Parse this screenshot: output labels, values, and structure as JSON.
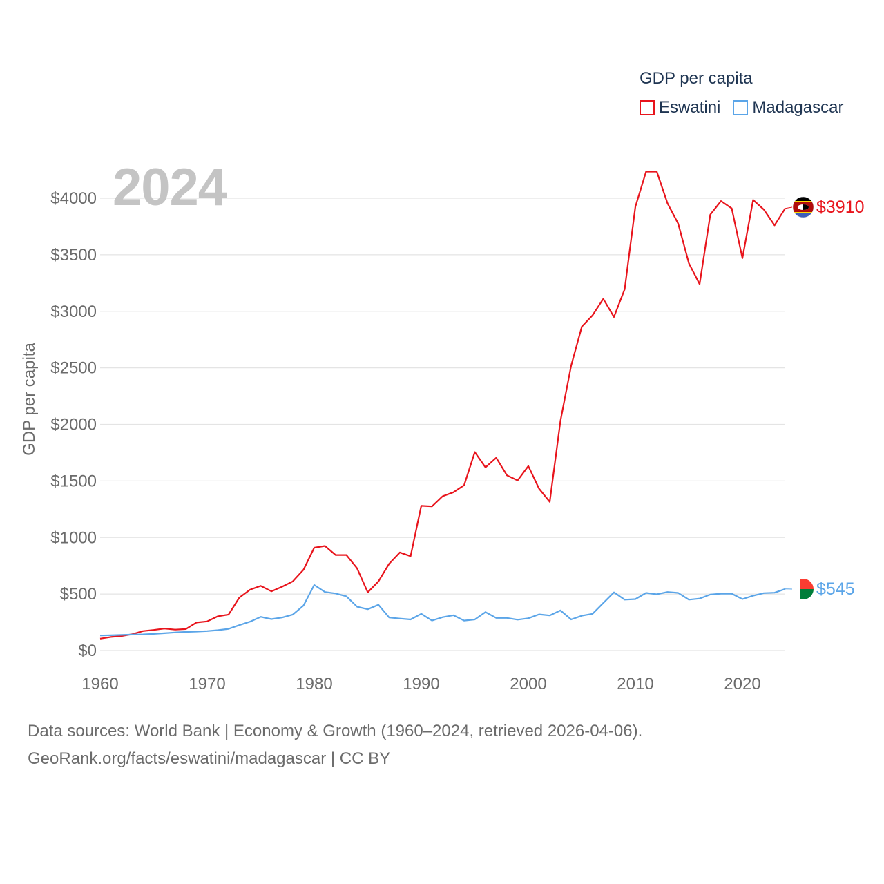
{
  "year_display": "2024",
  "legend": {
    "title": "GDP per capita",
    "items": [
      {
        "label": "Eswatini",
        "color": "#e8141c"
      },
      {
        "label": "Madagascar",
        "color": "#5ba5e8"
      }
    ]
  },
  "footer": {
    "line1": "Data sources: World Bank | Economy & Growth (1960–2024, retrieved 2026-04-06).",
    "line2": "GeoRank.org/facts/eswatini/madagascar | CC BY"
  },
  "chart_data": {
    "type": "line",
    "title": "",
    "xlabel": "",
    "ylabel": "GDP per capita",
    "xlim": [
      1960,
      2024
    ],
    "ylim": [
      0,
      4000
    ],
    "x_ticks": [
      1960,
      1970,
      1980,
      1990,
      2000,
      2010,
      2020
    ],
    "x_tick_labels": [
      "1960",
      "1970",
      "1980",
      "1990",
      "2000",
      "2010",
      "2020"
    ],
    "y_ticks": [
      0,
      500,
      1000,
      1500,
      2000,
      2500,
      3000,
      3500,
      4000
    ],
    "y_tick_labels": [
      "$0",
      "$500",
      "$1000",
      "$1500",
      "$2000",
      "$2500",
      "$3000",
      "$3500",
      "$4000"
    ],
    "grid": true,
    "x": [
      1960,
      1961,
      1962,
      1963,
      1964,
      1965,
      1966,
      1967,
      1968,
      1969,
      1970,
      1971,
      1972,
      1973,
      1974,
      1975,
      1976,
      1977,
      1978,
      1979,
      1980,
      1981,
      1982,
      1983,
      1984,
      1985,
      1986,
      1987,
      1988,
      1989,
      1990,
      1991,
      1992,
      1993,
      1994,
      1995,
      1996,
      1997,
      1998,
      1999,
      2000,
      2001,
      2002,
      2003,
      2004,
      2005,
      2006,
      2007,
      2008,
      2009,
      2010,
      2011,
      2012,
      2013,
      2014,
      2015,
      2016,
      2017,
      2018,
      2019,
      2020,
      2021,
      2022,
      2023,
      2024
    ],
    "series": [
      {
        "name": "Eswatini",
        "color": "#e8141c",
        "end_label": "$3910",
        "values": [
          105,
          120,
          128,
          145,
          172,
          182,
          194,
          185,
          190,
          248,
          258,
          303,
          318,
          468,
          538,
          572,
          524,
          565,
          612,
          715,
          910,
          925,
          845,
          845,
          728,
          515,
          612,
          768,
          868,
          835,
          1280,
          1275,
          1365,
          1400,
          1462,
          1755,
          1620,
          1705,
          1550,
          1505,
          1632,
          1432,
          1315,
          2030,
          2520,
          2865,
          2965,
          3110,
          2950,
          3195,
          3925,
          4235,
          4235,
          3955,
          3775,
          3425,
          3240,
          3855,
          3975,
          3910,
          3470,
          3985,
          3900,
          3760,
          3910
        ]
      },
      {
        "name": "Madagascar",
        "color": "#5ba5e8",
        "end_label": "$545",
        "values": [
          133,
          135,
          138,
          141,
          143,
          147,
          153,
          160,
          165,
          168,
          172,
          180,
          192,
          225,
          255,
          298,
          278,
          292,
          318,
          398,
          580,
          518,
          505,
          480,
          388,
          365,
          405,
          292,
          283,
          275,
          325,
          265,
          295,
          312,
          265,
          275,
          340,
          288,
          288,
          273,
          285,
          320,
          310,
          355,
          275,
          308,
          325,
          420,
          515,
          450,
          455,
          510,
          498,
          518,
          510,
          450,
          460,
          495,
          503,
          503,
          455,
          485,
          508,
          512,
          545
        ]
      }
    ]
  }
}
